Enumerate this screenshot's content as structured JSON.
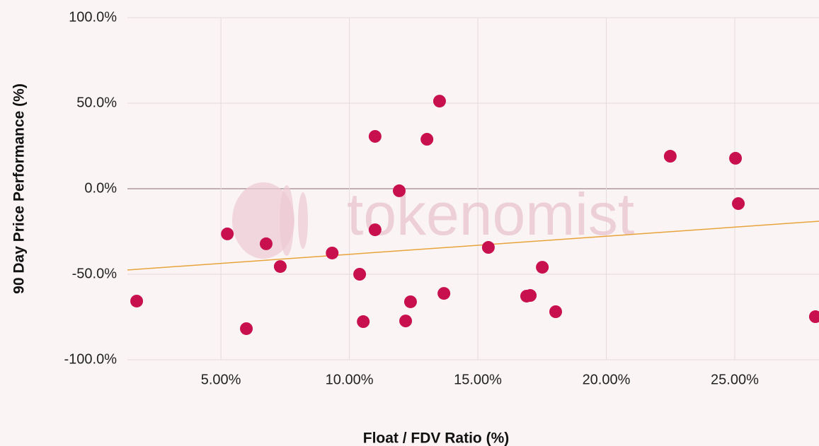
{
  "chart_data": {
    "type": "scatter",
    "watermark": "tokenomist",
    "xlabel": "Float / FDV Ratio (%)",
    "ylabel": "90 Day Price Performance (%)",
    "xlim": [
      1.36,
      28.28
    ],
    "ylim": [
      -100,
      100
    ],
    "xticks": [
      {
        "value": 5,
        "label": "5.00%"
      },
      {
        "value": 10,
        "label": "10.00%"
      },
      {
        "value": 15,
        "label": "15.00%"
      },
      {
        "value": 20,
        "label": "20.00%"
      },
      {
        "value": 25,
        "label": "25.00%"
      }
    ],
    "yticks": [
      {
        "value": -100,
        "label": "-100.0%"
      },
      {
        "value": -50,
        "label": "-50.0%"
      },
      {
        "value": 0,
        "label": "0.0%"
      },
      {
        "value": 50,
        "label": "50.0%"
      },
      {
        "value": 100,
        "label": "100.0%"
      }
    ],
    "grid": true,
    "color": "#c8104f",
    "x": [
      1.72,
      5.25,
      5.99,
      6.76,
      7.31,
      9.33,
      10.4,
      10.54,
      11.0,
      11.0,
      11.94,
      12.19,
      12.38,
      13.02,
      13.51,
      13.68,
      15.41,
      16.9,
      17.04,
      17.51,
      18.03,
      22.49,
      25.03,
      25.14,
      28.14
    ],
    "y": [
      -65.7,
      -26.4,
      -81.8,
      -32.2,
      -45.5,
      -37.6,
      -50.0,
      -77.7,
      30.6,
      -24.0,
      -1.2,
      -77.3,
      -66.1,
      28.9,
      51.2,
      -61.2,
      -34.3,
      -62.8,
      -62.4,
      -45.9,
      -71.9,
      19.0,
      17.8,
      -8.7,
      -74.8
    ],
    "trendline": {
      "color": "#e8a33a",
      "x": [
        1.36,
        28.28
      ],
      "y": [
        -47.5,
        -19.0
      ]
    }
  }
}
